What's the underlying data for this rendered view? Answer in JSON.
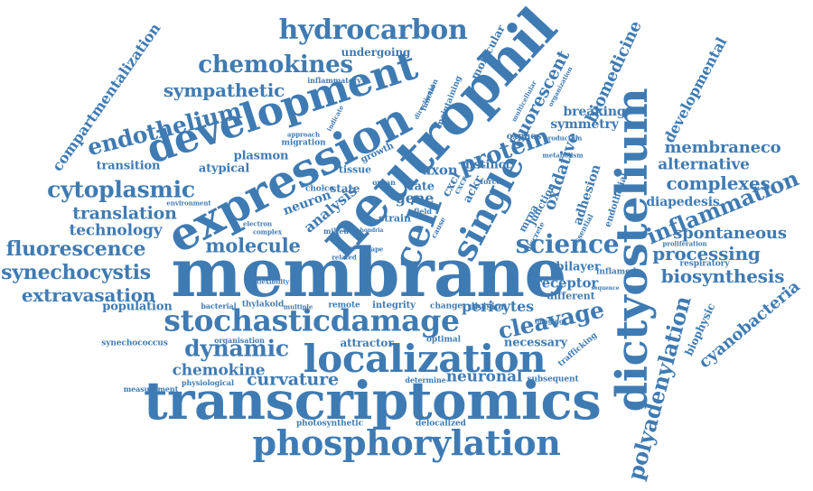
{
  "accent_color": "#3f7bb3",
  "words": [
    "membrane",
    "neutrophil",
    "transcriptomics",
    "expression",
    "dictyostelium",
    "development",
    "localization",
    "phosphorylation",
    "stochasticdamage",
    "cell",
    "single",
    "hydrocarbon",
    "science",
    "chemokines",
    "cytoplasmic",
    "endothelium",
    "polyadenylation",
    "protein",
    "fluorescence",
    "synechocystis",
    "extravasation",
    "dynamic",
    "cleavage",
    "inflammation",
    "molecule",
    "sympathetic",
    "translation",
    "technology",
    "processing",
    "biosynthesis",
    "spontaneous",
    "complexes",
    "alternative",
    "membraneco",
    "curvature",
    "chemokine",
    "cyanobacteria",
    "fluorescent",
    "biomedicine",
    "compartmentalization",
    "oxidative",
    "neuronal",
    "developmental",
    "analysis",
    "transition",
    "adhesion",
    "symmetry",
    "breaking",
    "bilayer",
    "receptor",
    "pericytes",
    "diapedesis",
    "gene",
    "fate",
    "axon",
    "distinct",
    "plasmon",
    "atypical",
    "neuron",
    "undergoing",
    "molecular",
    "respiratory",
    "biophysic",
    "population",
    "attractor",
    "necessary",
    "remote",
    "integrity",
    "division",
    "change",
    "strain",
    "optimal",
    "subsequent",
    "determine",
    "delocalized",
    "photosynthetic",
    "synechococcus",
    "physiological",
    "measurement",
    "thylakoid",
    "bacterial",
    "migration",
    "growth",
    "tissue",
    "different",
    "inflamed",
    "imaging",
    "trafficking",
    "proliferation",
    "inflammatory",
    "maintaining",
    "approach",
    "endothelial",
    "organisation",
    "function",
    "state",
    "choice",
    "mrna",
    "junction",
    "cxcl",
    "cxcr",
    "oxphos",
    "metabolism",
    "force",
    "essential",
    "flexibility",
    "field",
    "production",
    "organization",
    "multicellular",
    "indicate",
    "environment",
    "complex",
    "electron",
    "sequence",
    "related",
    "multiple",
    "directional",
    "mitochondria",
    "stage",
    "shape",
    "milieu",
    "ackr",
    "discrete",
    "cause",
    "organ"
  ]
}
